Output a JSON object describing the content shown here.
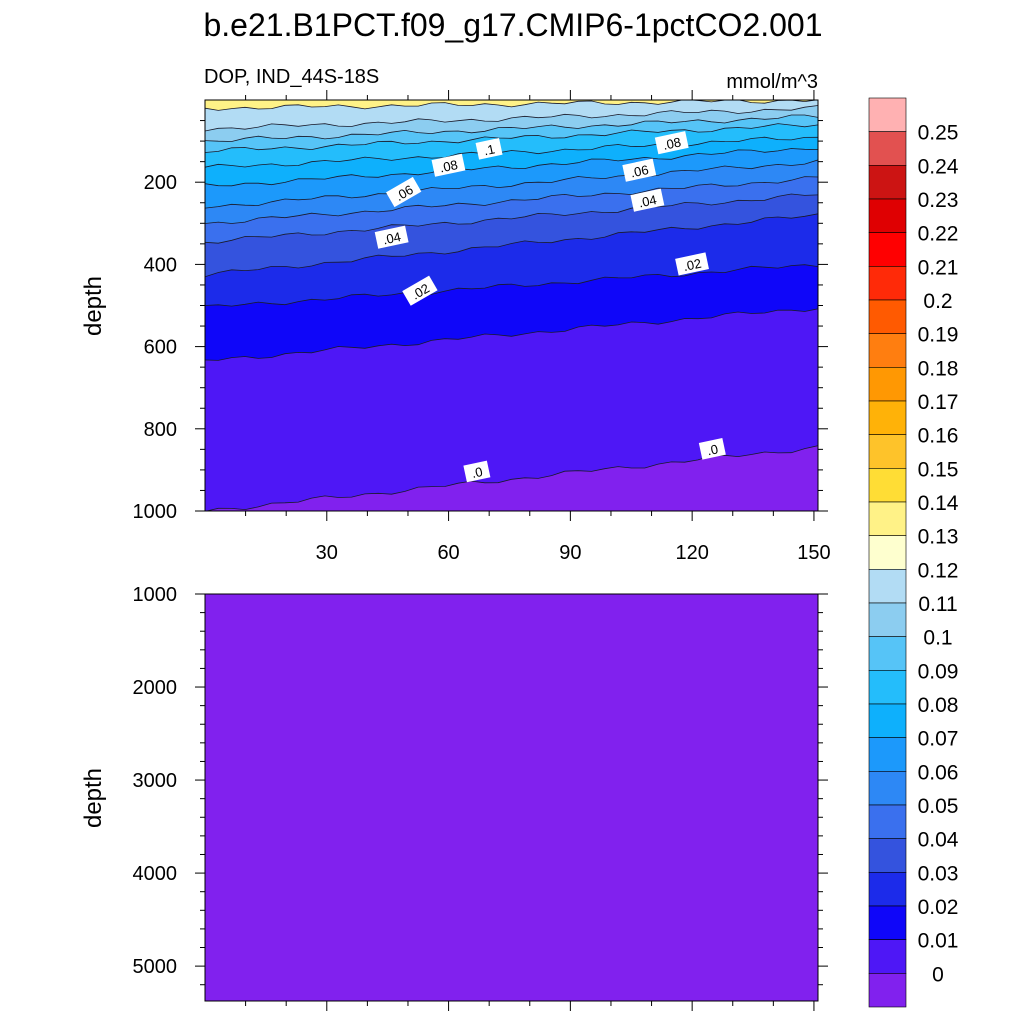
{
  "figure": {
    "title": "b.e21.B1PCT.f09_g17.CMIP6-1pctCO2.001",
    "variable_label": "DOP, IND_44S-18S",
    "units": "mmol/m^3"
  },
  "colors": {
    "levels": [
      "#8121ee",
      "#4e17f6",
      "#0f06f9",
      "#1c2bea",
      "#3453de",
      "#3a70ee",
      "#2d88f5",
      "#1c99fb",
      "#0eb0fc",
      "#24bdfb",
      "#56c4f7",
      "#8ccdf0",
      "#b2dcf4",
      "#feffcf",
      "#fff287",
      "#ffdd35",
      "#fec32a",
      "#ffb208",
      "#ff9803",
      "#ff7e10",
      "#ff5a01",
      "#ff2a08",
      "#ff0001",
      "#df0002",
      "#cc1413",
      "#e25150",
      "#ffb1b2"
    ]
  },
  "chart_data": [
    {
      "type": "contour",
      "panel": "upper",
      "x": [
        0,
        30,
        60,
        90,
        120,
        150
      ],
      "xlim": [
        0,
        151
      ],
      "x_tick_labels": [
        "30",
        "60",
        "90",
        "120",
        "150"
      ],
      "ylabel": "depth",
      "ylim": [
        1000,
        0
      ],
      "y_tick_labels": [
        "200",
        "400",
        "600",
        "800",
        "1000"
      ],
      "approx_isoline_depth_left_right": [
        {
          "level": 0.12,
          "depth": [
            20,
            0
          ]
        },
        {
          "level": 0.11,
          "depth": [
            70,
            20
          ]
        },
        {
          "level": 0.1,
          "depth": [
            100,
            40
          ]
        },
        {
          "level": 0.09,
          "depth": [
            125,
            60
          ]
        },
        {
          "level": 0.08,
          "depth": [
            165,
            90
          ]
        },
        {
          "level": 0.07,
          "depth": [
            210,
            115
          ]
        },
        {
          "level": 0.06,
          "depth": [
            260,
            150
          ]
        },
        {
          "level": 0.05,
          "depth": [
            300,
            190
          ]
        },
        {
          "level": 0.04,
          "depth": [
            345,
            230
          ]
        },
        {
          "level": 0.03,
          "depth": [
            425,
            280
          ]
        },
        {
          "level": 0.02,
          "depth": [
            505,
            400
          ]
        },
        {
          "level": 0.01,
          "depth": [
            635,
            505
          ]
        },
        {
          "level": 0.0,
          "depth": [
            1000,
            845
          ]
        }
      ],
      "contour_labels": [
        {
          "text": ".1",
          "x": 70,
          "depth": 120
        },
        {
          "text": ".08",
          "x": 60,
          "depth": 160
        },
        {
          "text": ".08",
          "x": 115,
          "depth": 105
        },
        {
          "text": ".06",
          "x": 49,
          "depth": 225
        },
        {
          "text": ".06",
          "x": 107,
          "depth": 172
        },
        {
          "text": ".04",
          "x": 46,
          "depth": 335
        },
        {
          "text": ".04",
          "x": 109,
          "depth": 245
        },
        {
          "text": ".02",
          "x": 53,
          "depth": 465
        },
        {
          "text": ".02",
          "x": 120,
          "depth": 400
        },
        {
          "text": ".0",
          "x": 67,
          "depth": 905
        },
        {
          "text": ".0",
          "x": 125,
          "depth": 850
        }
      ]
    },
    {
      "type": "contour",
      "panel": "lower",
      "xlim": [
        0,
        151
      ],
      "ylabel": "depth",
      "ylim": [
        5375,
        1000
      ],
      "y_tick_labels": [
        "1000",
        "2000",
        "3000",
        "4000",
        "5000"
      ],
      "uniform_level": 0.0
    }
  ],
  "colorbar": {
    "labels": [
      "0.25",
      "0.24",
      "0.23",
      "0.22",
      "0.21",
      "0.2",
      "0.19",
      "0.18",
      "0.17",
      "0.16",
      "0.15",
      "0.14",
      "0.13",
      "0.12",
      "0.11",
      "0.1",
      "0.09",
      "0.08",
      "0.07",
      "0.06",
      "0.05",
      "0.04",
      "0.03",
      "0.02",
      "0.01",
      "0"
    ]
  }
}
